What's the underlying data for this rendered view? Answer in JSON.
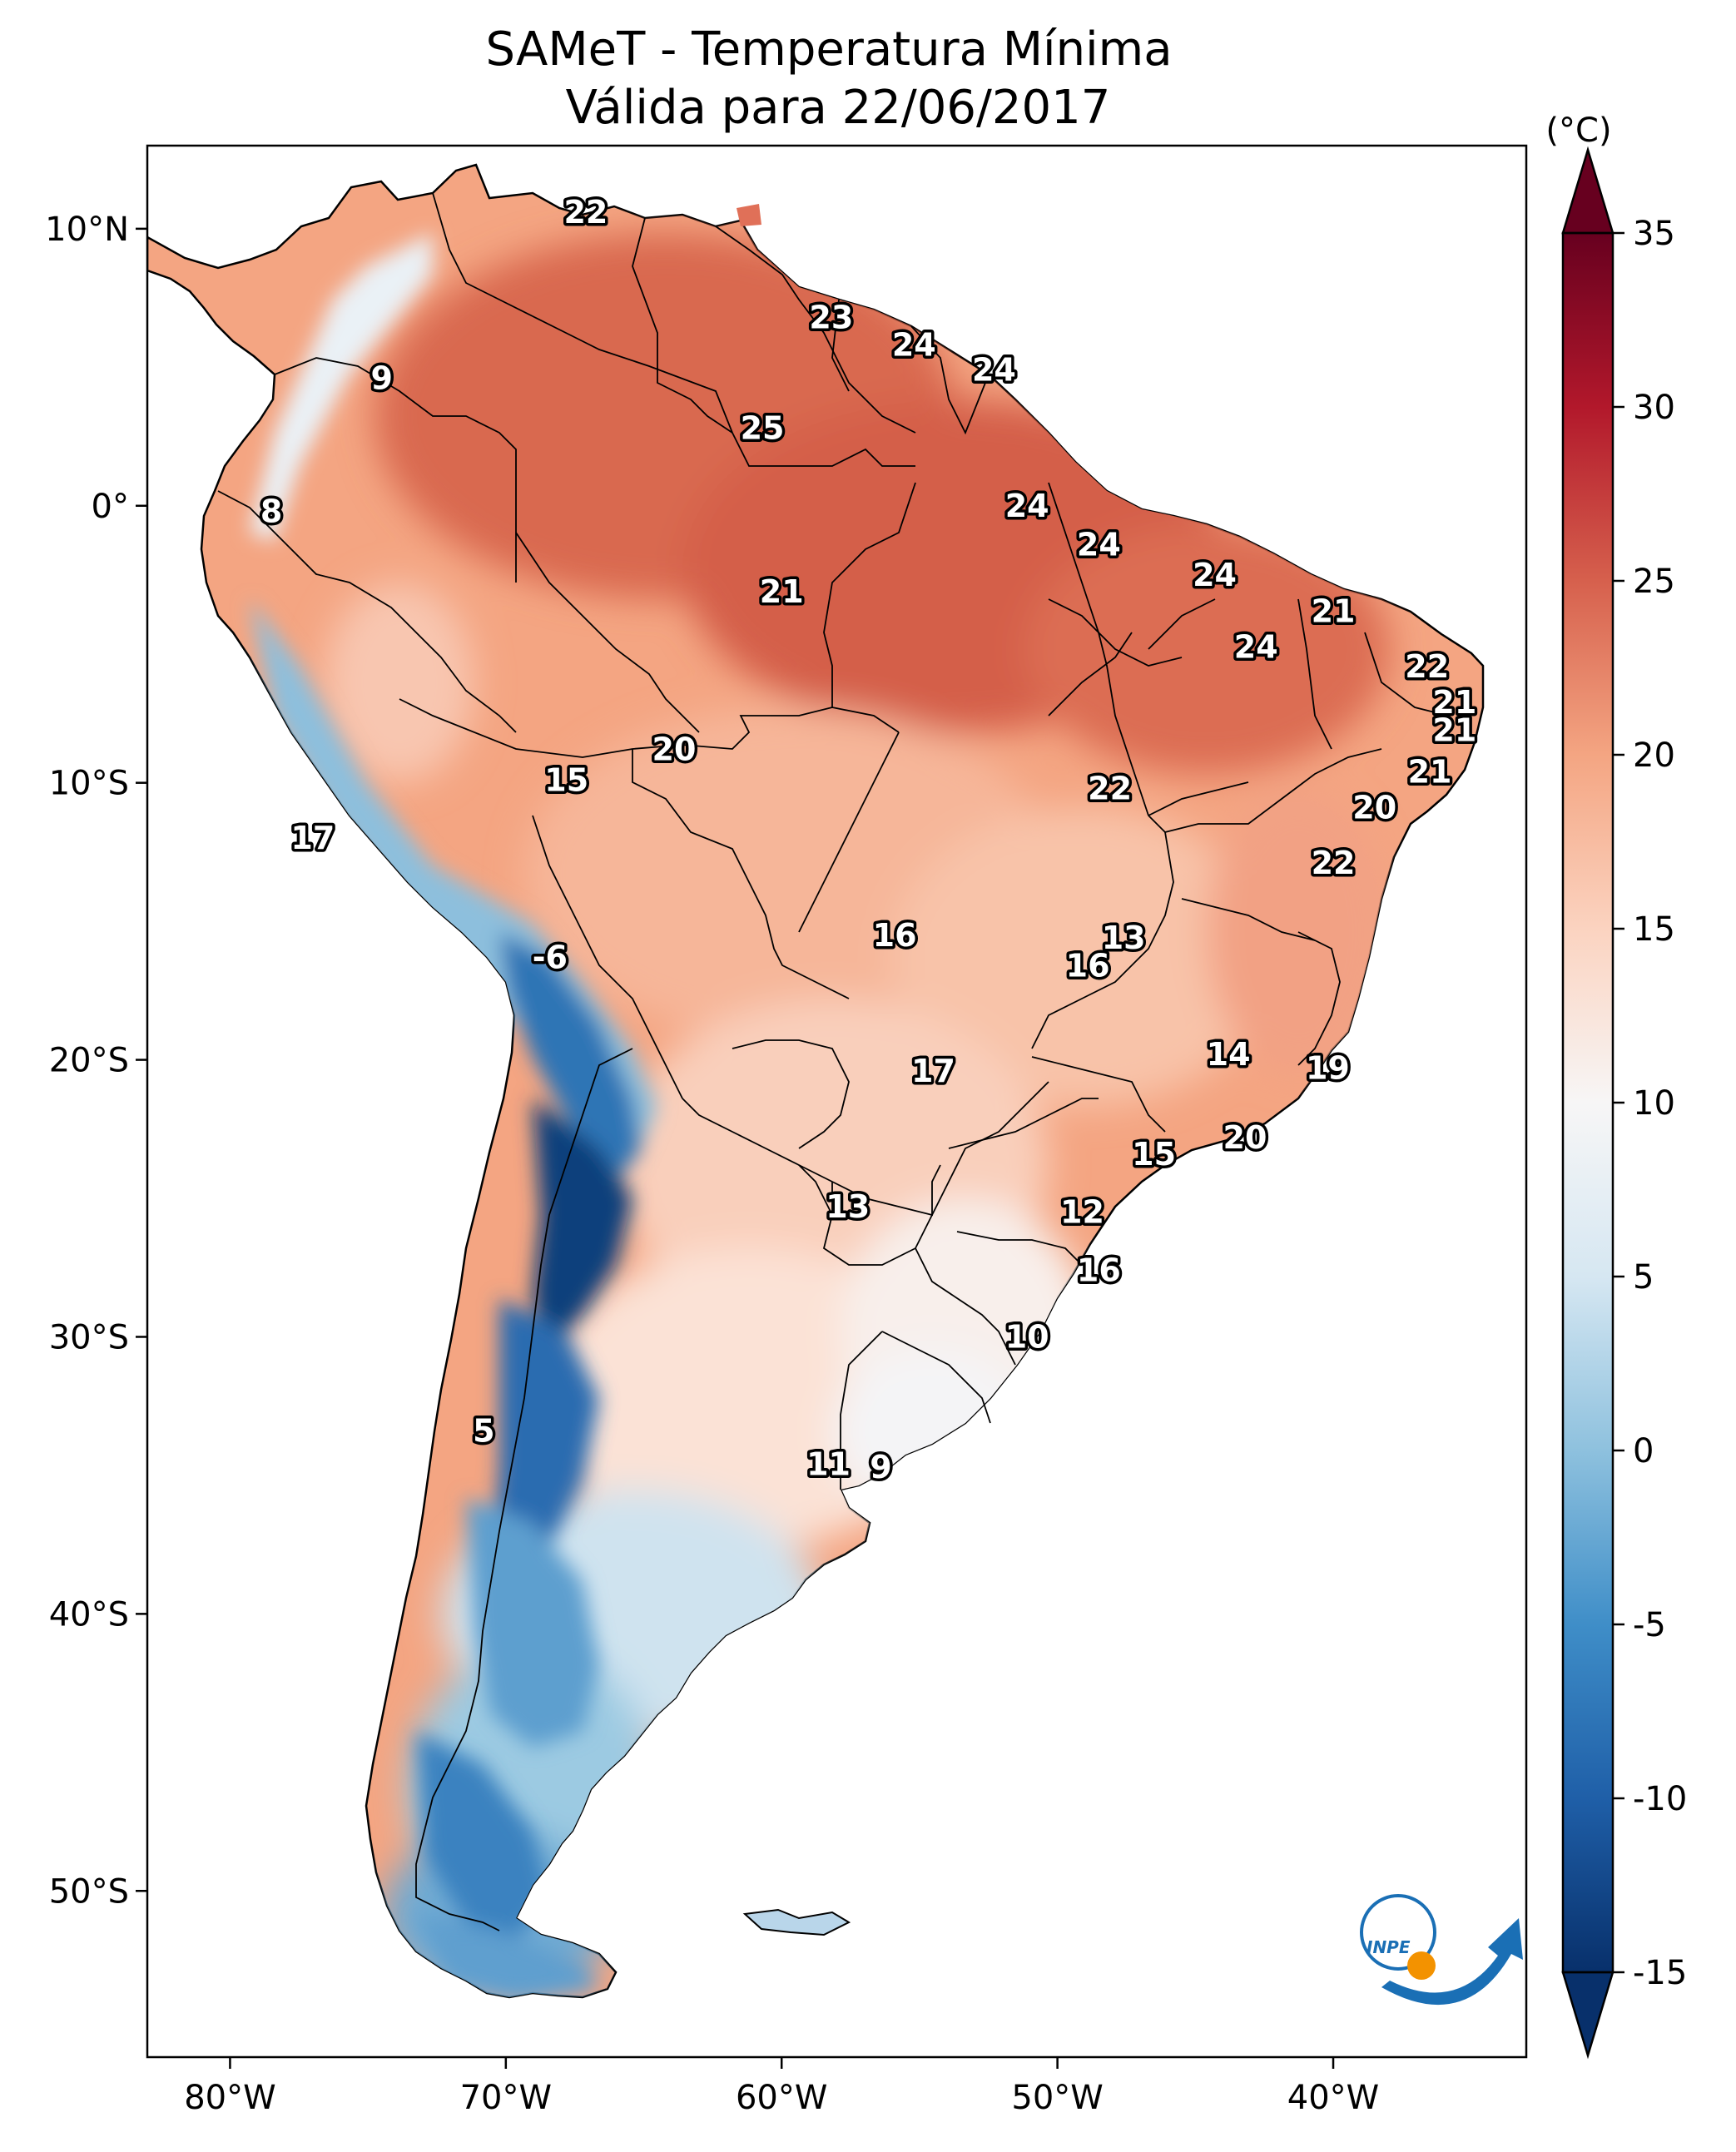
{
  "title_line1": "SAMeT - Temperatura Mínima",
  "title_line2": "Válida para 22/06/2017",
  "colorbar": {
    "unit": "(°C)",
    "min": -15,
    "max": 35,
    "ticks": [
      "35",
      "30",
      "25",
      "20",
      "15",
      "10",
      "5",
      "0",
      "-5",
      "-10",
      "-15"
    ],
    "extend": "both",
    "colormap": "RdBu_r",
    "stops": [
      {
        "v": -15,
        "c": "#08306b"
      },
      {
        "v": -10,
        "c": "#1f5fa8"
      },
      {
        "v": -5,
        "c": "#3f8ec8"
      },
      {
        "v": 0,
        "c": "#8ec1de"
      },
      {
        "v": 5,
        "c": "#d6e7f2"
      },
      {
        "v": 10,
        "c": "#f7f6f6"
      },
      {
        "v": 15,
        "c": "#fbd3c0"
      },
      {
        "v": 20,
        "c": "#f4a582"
      },
      {
        "v": 25,
        "c": "#d6604d"
      },
      {
        "v": 30,
        "c": "#b2182b"
      },
      {
        "v": 35,
        "c": "#67001f"
      }
    ]
  },
  "axes": {
    "lon_ticks": [
      "80°W",
      "70°W",
      "60°W",
      "50°W",
      "40°W"
    ],
    "lat_ticks": [
      "10°N",
      "0°",
      "10°S",
      "20°S",
      "30°S",
      "40°S",
      "50°S"
    ],
    "lon_range": [
      -83,
      -33
    ],
    "lat_range": [
      -56,
      13
    ]
  },
  "city_labels": [
    {
      "text": "22",
      "lon": -67.1,
      "lat": 10.6
    },
    {
      "text": "9",
      "lon": -74.5,
      "lat": 4.6
    },
    {
      "text": "23",
      "lon": -58.2,
      "lat": 6.8
    },
    {
      "text": "24",
      "lon": -55.2,
      "lat": 5.8
    },
    {
      "text": "24",
      "lon": -52.3,
      "lat": 4.9
    },
    {
      "text": "25",
      "lon": -60.7,
      "lat": 2.8
    },
    {
      "text": "8",
      "lon": -78.5,
      "lat": -0.2
    },
    {
      "text": "24",
      "lon": -51.1,
      "lat": 0.0
    },
    {
      "text": "24",
      "lon": -48.5,
      "lat": -1.4
    },
    {
      "text": "21",
      "lon": -60.0,
      "lat": -3.1
    },
    {
      "text": "24",
      "lon": -44.3,
      "lat": -2.5
    },
    {
      "text": "21",
      "lon": -40.0,
      "lat": -3.8
    },
    {
      "text": "24",
      "lon": -42.8,
      "lat": -5.1
    },
    {
      "text": "22",
      "lon": -36.6,
      "lat": -5.8
    },
    {
      "text": "21",
      "lon": -35.6,
      "lat": -7.1
    },
    {
      "text": "21",
      "lon": -35.6,
      "lat": -8.1
    },
    {
      "text": "21",
      "lon": -36.5,
      "lat": -9.6
    },
    {
      "text": "20",
      "lon": -38.5,
      "lat": -10.9
    },
    {
      "text": "22",
      "lon": -48.1,
      "lat": -10.2
    },
    {
      "text": "20",
      "lon": -63.9,
      "lat": -8.8
    },
    {
      "text": "15",
      "lon": -67.8,
      "lat": -9.9
    },
    {
      "text": "17",
      "lon": -77.0,
      "lat": -12.0
    },
    {
      "text": "22",
      "lon": -40.0,
      "lat": -12.9
    },
    {
      "text": "13",
      "lon": -47.6,
      "lat": -15.6
    },
    {
      "text": "16",
      "lon": -48.9,
      "lat": -16.6
    },
    {
      "text": "16",
      "lon": -55.9,
      "lat": -15.5
    },
    {
      "text": "-6",
      "lon": -68.4,
      "lat": -16.3
    },
    {
      "text": "14",
      "lon": -43.8,
      "lat": -19.8
    },
    {
      "text": "19",
      "lon": -40.2,
      "lat": -20.3
    },
    {
      "text": "17",
      "lon": -54.5,
      "lat": -20.4
    },
    {
      "text": "15",
      "lon": -46.5,
      "lat": -23.4
    },
    {
      "text": "20",
      "lon": -43.2,
      "lat": -22.8
    },
    {
      "text": "13",
      "lon": -57.6,
      "lat": -25.3
    },
    {
      "text": "12",
      "lon": -49.1,
      "lat": -25.5
    },
    {
      "text": "16",
      "lon": -48.5,
      "lat": -27.6
    },
    {
      "text": "10",
      "lon": -51.1,
      "lat": -30.0
    },
    {
      "text": "5",
      "lon": -70.8,
      "lat": -33.4
    },
    {
      "text": "11",
      "lon": -58.3,
      "lat": -34.6
    },
    {
      "text": "9",
      "lon": -56.4,
      "lat": -34.7
    }
  ],
  "logo": {
    "text": "INPE",
    "blue": "#1a6fb5",
    "orange": "#f39200"
  }
}
